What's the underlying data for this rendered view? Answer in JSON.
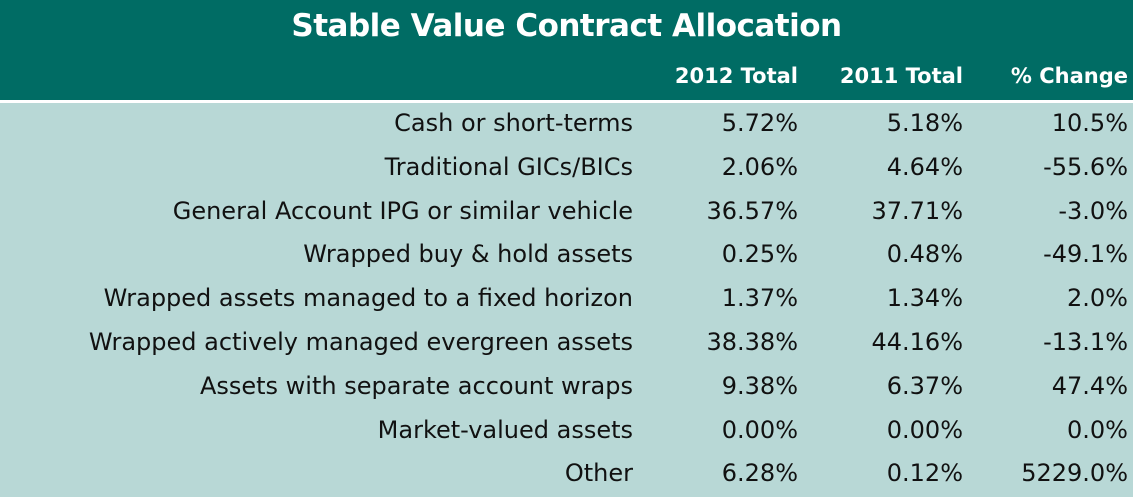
{
  "chart_data": {
    "type": "table",
    "title": "Stable Value Contract Allocation",
    "columns": [
      "",
      "2012 Total",
      "2011 Total",
      "% Change"
    ],
    "rows": [
      [
        "Cash or short-terms",
        "5.72%",
        "5.18%",
        "10.5%"
      ],
      [
        "Traditional GICs/BICs",
        "2.06%",
        "4.64%",
        "-55.6%"
      ],
      [
        "General Account IPG or similar vehicle",
        "36.57%",
        "37.71%",
        "-3.0%"
      ],
      [
        "Wrapped buy & hold assets",
        "0.25%",
        "0.48%",
        "-49.1%"
      ],
      [
        "Wrapped assets managed to a fixed horizon",
        "1.37%",
        "1.34%",
        "2.0%"
      ],
      [
        "Wrapped actively managed evergreen assets",
        "38.38%",
        "44.16%",
        "-13.1%"
      ],
      [
        "Assets with separate account wraps",
        "9.38%",
        "6.37%",
        "47.4%"
      ],
      [
        "Market-valued assets",
        "0.00%",
        "0.00%",
        "0.0%"
      ],
      [
        "Other",
        "6.28%",
        "0.12%",
        "5229.0%"
      ]
    ],
    "colors": {
      "header_bg": "#006c64",
      "body_bg": "#b8d8d6",
      "header_text": "#ffffff"
    }
  }
}
